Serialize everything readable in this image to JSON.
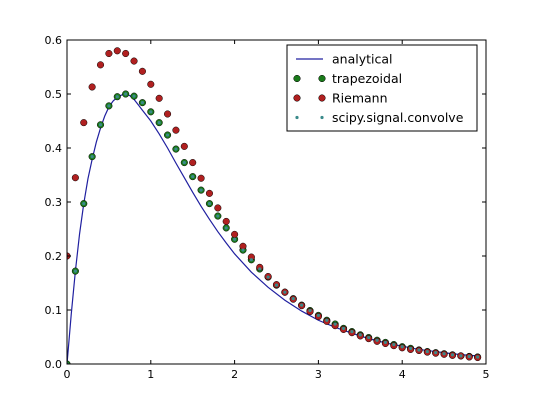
{
  "chart_data": {
    "type": "line",
    "title": "",
    "xlabel": "",
    "ylabel": "",
    "xlim": [
      0,
      5
    ],
    "ylim": [
      0,
      0.6
    ],
    "xticks": [
      "0",
      "1",
      "2",
      "3",
      "4",
      "5"
    ],
    "yticks": [
      "0.0",
      "0.1",
      "0.2",
      "0.3",
      "0.4",
      "0.5",
      "0.6"
    ],
    "grid": false,
    "legend_position": "top-right",
    "series": [
      {
        "name": "analytical",
        "style": "line",
        "color": "#2020a0",
        "x": [
          0,
          0.05,
          0.1,
          0.15,
          0.2,
          0.25,
          0.3,
          0.35,
          0.4,
          0.45,
          0.5,
          0.55,
          0.6,
          0.65,
          0.7,
          0.75,
          0.8,
          0.85,
          0.9,
          0.95,
          1.0,
          1.1,
          1.2,
          1.3,
          1.4,
          1.5,
          1.6,
          1.7,
          1.8,
          1.9,
          2.0,
          2.2,
          2.4,
          2.6,
          2.8,
          3.0,
          3.2,
          3.4,
          3.6,
          3.8,
          4.0,
          4.2,
          4.4,
          4.6,
          4.8,
          4.9
        ],
        "y": [
          0,
          0.091,
          0.172,
          0.241,
          0.297,
          0.343,
          0.379,
          0.411,
          0.437,
          0.459,
          0.476,
          0.487,
          0.494,
          0.498,
          0.5,
          0.497,
          0.49,
          0.48,
          0.47,
          0.46,
          0.45,
          0.426,
          0.4,
          0.372,
          0.345,
          0.318,
          0.292,
          0.268,
          0.245,
          0.224,
          0.204,
          0.17,
          0.142,
          0.118,
          0.098,
          0.081,
          0.068,
          0.057,
          0.047,
          0.039,
          0.033,
          0.027,
          0.023,
          0.019,
          0.016,
          0.015
        ]
      },
      {
        "name": "trapezoidal",
        "style": "marker",
        "color": "#1a7a1a",
        "x": [
          0,
          0.1,
          0.2,
          0.3,
          0.4,
          0.5,
          0.6,
          0.7,
          0.8,
          0.9,
          1.0,
          1.1,
          1.2,
          1.3,
          1.4,
          1.5,
          1.6,
          1.7,
          1.8,
          1.9,
          2.0,
          2.1,
          2.2,
          2.3,
          2.4,
          2.5,
          2.6,
          2.7,
          2.8,
          2.9,
          3.0,
          3.1,
          3.2,
          3.3,
          3.4,
          3.5,
          3.6,
          3.7,
          3.8,
          3.9,
          4.0,
          4.1,
          4.2,
          4.3,
          4.4,
          4.5,
          4.6,
          4.7,
          4.8,
          4.9
        ],
        "y": [
          0,
          0.172,
          0.297,
          0.384,
          0.443,
          0.478,
          0.495,
          0.5,
          0.496,
          0.484,
          0.467,
          0.447,
          0.424,
          0.398,
          0.373,
          0.347,
          0.322,
          0.297,
          0.274,
          0.252,
          0.231,
          0.211,
          0.193,
          0.176,
          0.161,
          0.146,
          0.133,
          0.121,
          0.109,
          0.099,
          0.09,
          0.081,
          0.074,
          0.066,
          0.06,
          0.054,
          0.049,
          0.044,
          0.04,
          0.036,
          0.032,
          0.029,
          0.026,
          0.023,
          0.021,
          0.019,
          0.017,
          0.015,
          0.014,
          0.013
        ]
      },
      {
        "name": "Riemann",
        "style": "marker",
        "color": "#b02020",
        "x": [
          0,
          0.1,
          0.2,
          0.3,
          0.4,
          0.5,
          0.6,
          0.7,
          0.8,
          0.9,
          1.0,
          1.1,
          1.2,
          1.3,
          1.4,
          1.5,
          1.6,
          1.7,
          1.8,
          1.9,
          2.0,
          2.1,
          2.2,
          2.3,
          2.4,
          2.5,
          2.6,
          2.7,
          2.8,
          2.9,
          3.0,
          3.1,
          3.2,
          3.3,
          3.4,
          3.5,
          3.6,
          3.7,
          3.8,
          3.9,
          4.0,
          4.1,
          4.2,
          4.3,
          4.4,
          4.5,
          4.6,
          4.7,
          4.8,
          4.9
        ],
        "y": [
          0.2,
          0.345,
          0.447,
          0.513,
          0.554,
          0.575,
          0.58,
          0.575,
          0.561,
          0.542,
          0.518,
          0.492,
          0.463,
          0.433,
          0.403,
          0.373,
          0.344,
          0.316,
          0.289,
          0.264,
          0.24,
          0.218,
          0.198,
          0.179,
          0.162,
          0.147,
          0.133,
          0.12,
          0.108,
          0.097,
          0.088,
          0.079,
          0.071,
          0.064,
          0.058,
          0.052,
          0.047,
          0.042,
          0.038,
          0.034,
          0.03,
          0.027,
          0.025,
          0.022,
          0.02,
          0.018,
          0.016,
          0.015,
          0.013,
          0.012
        ]
      },
      {
        "name": "scipy.signal.convolve",
        "style": "small-marker",
        "color": "#3a8a8a",
        "x": [
          0,
          0.1,
          0.2,
          0.3,
          0.4,
          0.5,
          0.6,
          0.7,
          0.8,
          0.9,
          1.0,
          1.1,
          1.2,
          1.3,
          1.4,
          1.5,
          1.6,
          1.7,
          1.8,
          1.9,
          2.0,
          2.1,
          2.2,
          2.3,
          2.4,
          2.5,
          2.6,
          2.7,
          2.8,
          2.9,
          3.0,
          3.1,
          3.2,
          3.3,
          3.4,
          3.5,
          3.6,
          3.7,
          3.8,
          3.9,
          4.0,
          4.1,
          4.2,
          4.3,
          4.4,
          4.5,
          4.6,
          4.7,
          4.8,
          4.9
        ],
        "y": [
          0,
          0.172,
          0.297,
          0.384,
          0.443,
          0.478,
          0.495,
          0.5,
          0.496,
          0.484,
          0.467,
          0.447,
          0.424,
          0.398,
          0.373,
          0.347,
          0.322,
          0.297,
          0.274,
          0.252,
          0.231,
          0.211,
          0.193,
          0.176,
          0.161,
          0.146,
          0.133,
          0.121,
          0.109,
          0.099,
          0.09,
          0.081,
          0.074,
          0.066,
          0.06,
          0.054,
          0.049,
          0.044,
          0.04,
          0.036,
          0.032,
          0.029,
          0.026,
          0.023,
          0.021,
          0.019,
          0.017,
          0.015,
          0.014,
          0.013
        ]
      }
    ]
  }
}
